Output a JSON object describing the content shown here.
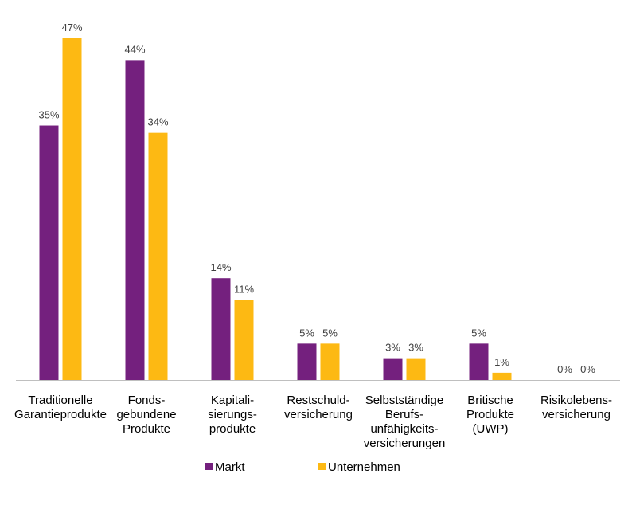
{
  "chart_data": {
    "type": "bar",
    "categories": [
      [
        "Traditionelle",
        "Garantieprodukte"
      ],
      [
        "Fonds-",
        "gebundene",
        "Produkte"
      ],
      [
        "Kapitali-",
        "sierungs-",
        "produkte"
      ],
      [
        "Restschuld-",
        "versicherung"
      ],
      [
        "Selbstständige",
        "Berufs-",
        "unfähigkeits-",
        "versicherungen"
      ],
      [
        "Britische",
        "Produkte",
        "(UWP)"
      ],
      [
        "Risikolebens-",
        "versicherung"
      ]
    ],
    "series": [
      {
        "name": "Markt",
        "values": [
          35,
          44,
          14,
          5,
          3,
          5,
          0
        ],
        "labels": [
          "35%",
          "44%",
          "14%",
          "5%",
          "3%",
          "5%",
          "0%"
        ]
      },
      {
        "name": "Unternehmen",
        "values": [
          47,
          34,
          11,
          5,
          3,
          1,
          0
        ],
        "labels": [
          "47%",
          "34%",
          "11%",
          "5%",
          "3%",
          "1%",
          "0%"
        ]
      }
    ],
    "ylim": [
      0,
      47
    ],
    "grid": false,
    "legend_position": "bottom",
    "colors": [
      "#74207E",
      "#FDB913"
    ],
    "axis_color": "#bfbfbf"
  }
}
